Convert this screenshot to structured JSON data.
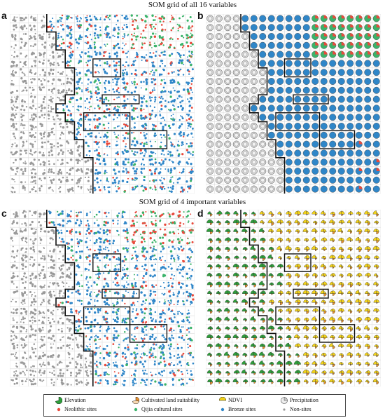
{
  "titles": {
    "top": "SOM grid of all 16 variables",
    "bottom": "SOM grid of 4 important variables"
  },
  "panels": [
    {
      "id": "a",
      "letter": "a",
      "kind": "scatter"
    },
    {
      "id": "b",
      "letter": "b",
      "kind": "pie"
    },
    {
      "id": "c",
      "letter": "c",
      "kind": "scatter"
    },
    {
      "id": "d",
      "letter": "d",
      "kind": "rose"
    }
  ],
  "grid": {
    "cols": 20,
    "rows": 20
  },
  "colors": {
    "elevation": "#2e9e3a",
    "cultivated": "#e8902e",
    "ndvi": "#f2d21a",
    "precipitation": "#c8c8c8",
    "neolithic": "#e84a3c",
    "qijia": "#3bb36a",
    "bronze": "#2f86c8",
    "nonsites": "#9a9a9a",
    "boundary": "#111111"
  },
  "legend": {
    "row1": [
      {
        "label": "Elevation",
        "icon": "sector-icon-elevation",
        "color_key": "elevation"
      },
      {
        "label": "Cultivated land suitability",
        "icon": "sector-icon-cultivated",
        "color_key": "cultivated"
      },
      {
        "label": "NDVI",
        "icon": "sector-icon-ndvi",
        "color_key": "ndvi"
      },
      {
        "label": "Precipitation",
        "icon": "sector-icon-precipitation",
        "color_key": "precipitation"
      }
    ],
    "row2": [
      {
        "label": "Neolithic sites",
        "icon": "dot-icon-neolithic",
        "color_key": "neolithic"
      },
      {
        "label": "Qijia cultural sites",
        "icon": "dot-icon-qijia",
        "color_key": "qijia"
      },
      {
        "label": "Bronze sites",
        "icon": "dot-icon-bronze",
        "color_key": "bronze"
      },
      {
        "label": "Non-sites",
        "icon": "dot-icon-nonsites",
        "color_key": "nonsites"
      }
    ]
  }
}
